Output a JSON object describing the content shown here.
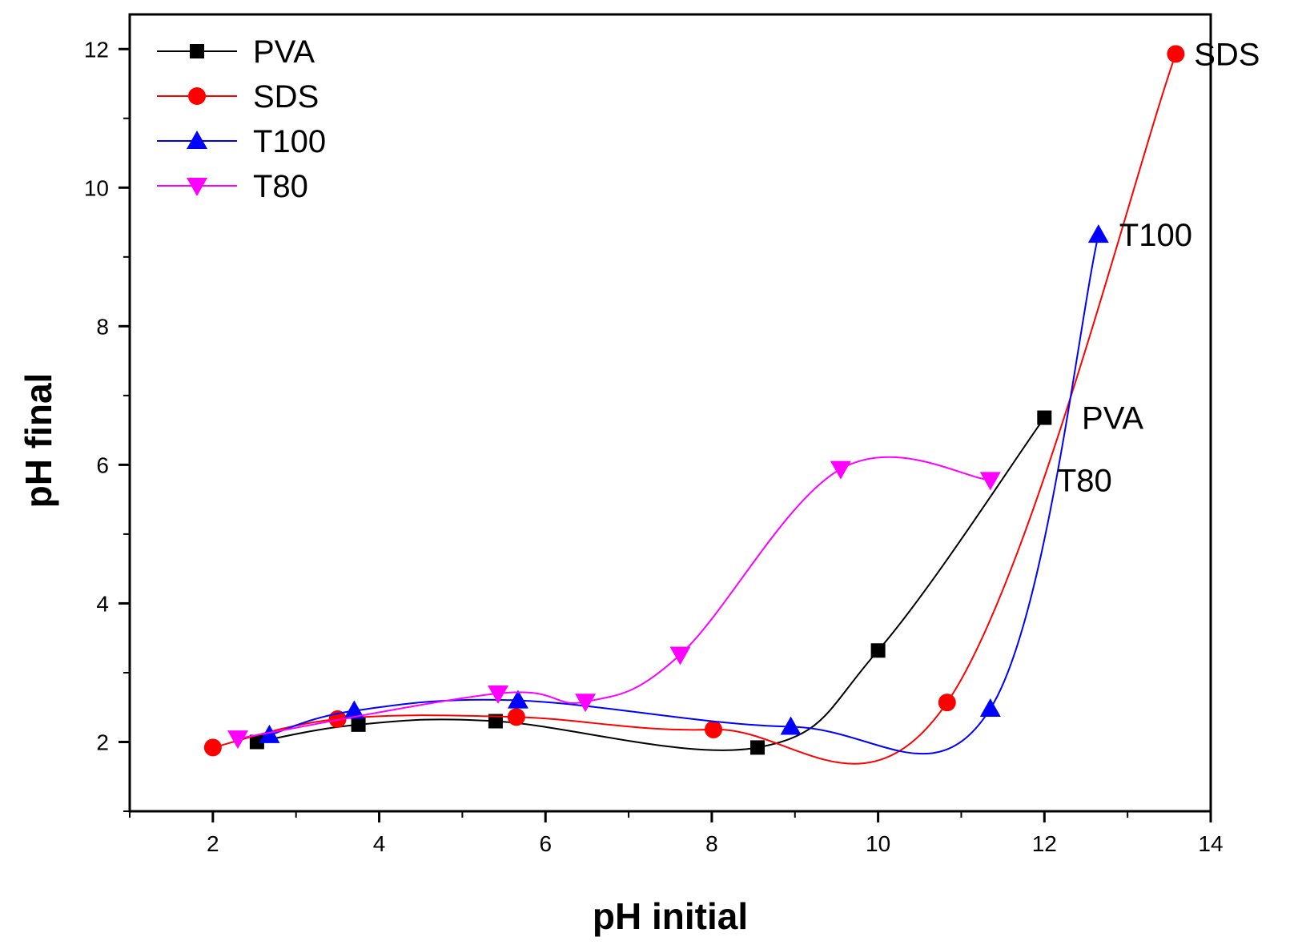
{
  "chart_data": {
    "type": "line",
    "title": "",
    "xlabel": "pH initial",
    "ylabel": "pH final",
    "xlim": [
      1,
      14
    ],
    "ylim": [
      1,
      12.5
    ],
    "xticks": [
      2,
      4,
      6,
      8,
      10,
      12,
      14
    ],
    "yticks": [
      2,
      4,
      6,
      8,
      10,
      12
    ],
    "xtick_labels": [
      "2",
      "4",
      "6",
      "8",
      "10",
      "12",
      "14"
    ],
    "ytick_labels": [
      "2",
      "4",
      "6",
      "8",
      "10",
      "12"
    ],
    "grid": false,
    "legend_position": "top-left",
    "series": [
      {
        "name": "PVA",
        "color": "#000000",
        "marker": "square",
        "x": [
          2.53,
          3.75,
          5.4,
          8.55,
          10.0,
          12.0
        ],
        "y": [
          2.0,
          2.25,
          2.3,
          1.92,
          3.32,
          6.68
        ]
      },
      {
        "name": "SDS",
        "color": "#ff0000",
        "marker": "circle",
        "x": [
          2.0,
          3.5,
          5.65,
          8.02,
          10.83,
          13.58
        ],
        "y": [
          1.92,
          2.33,
          2.36,
          2.18,
          2.57,
          11.93
        ]
      },
      {
        "name": "T100",
        "color": "#0000ff",
        "marker": "triangle-up",
        "x": [
          2.68,
          3.7,
          5.67,
          8.95,
          11.35,
          12.65
        ],
        "y": [
          2.1,
          2.45,
          2.6,
          2.22,
          2.48,
          9.32
        ]
      },
      {
        "name": "T80",
        "color": "#ff00ff",
        "marker": "triangle-down",
        "x": [
          2.3,
          5.43,
          6.48,
          7.62,
          9.55,
          11.35
        ],
        "y": [
          2.05,
          2.7,
          2.58,
          3.26,
          5.94,
          5.78
        ]
      }
    ],
    "annotations": [
      {
        "text": "SDS",
        "x": 13.8,
        "y": 11.93
      },
      {
        "text": "T100",
        "x": 12.9,
        "y": 9.32
      },
      {
        "text": "PVA",
        "x": 12.45,
        "y": 6.68
      },
      {
        "text": "T80",
        "x": 12.15,
        "y": 5.78
      }
    ]
  }
}
